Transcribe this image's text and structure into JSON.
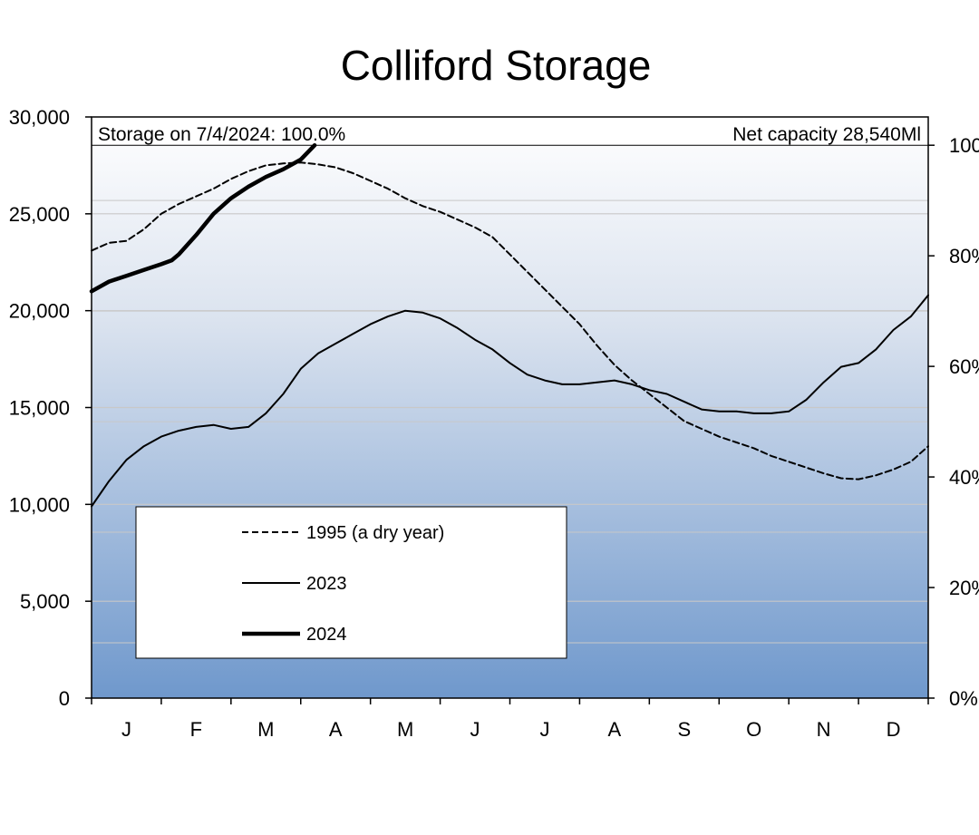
{
  "chart_data": {
    "type": "line",
    "title": "Colliford Storage",
    "storage_note": "Storage on 7/4/2024: 100.0%",
    "capacity_note": "Net capacity 28,540Ml",
    "x_tick_labels": [
      "J",
      "F",
      "M",
      "A",
      "M",
      "J",
      "J",
      "A",
      "S",
      "O",
      "N",
      "D"
    ],
    "xlim": [
      0,
      12
    ],
    "ylim": [
      0,
      30000
    ],
    "y_ticks": [
      0,
      5000,
      10000,
      15000,
      20000,
      25000,
      30000
    ],
    "y_tick_labels": [
      "0",
      "5,000",
      "10,000",
      "15,000",
      "20,000",
      "25,000",
      "30,000"
    ],
    "y2_ticks": [
      0,
      20,
      40,
      60,
      80,
      100
    ],
    "y2_tick_labels": [
      "0%",
      "20%",
      "40%",
      "60%",
      "80%",
      "100%"
    ],
    "y2_unit_max": 28540,
    "minor_gridlines": [
      2854,
      8562,
      14270,
      19978,
      25686
    ],
    "capacity_line": 28540,
    "series": [
      {
        "name": "1995 (a dry year)",
        "style": "dashed",
        "points": [
          [
            0,
            23100
          ],
          [
            0.25,
            23500
          ],
          [
            0.5,
            23600
          ],
          [
            0.75,
            24200
          ],
          [
            1.0,
            25000
          ],
          [
            1.25,
            25500
          ],
          [
            1.5,
            25900
          ],
          [
            1.75,
            26300
          ],
          [
            2.0,
            26800
          ],
          [
            2.25,
            27200
          ],
          [
            2.5,
            27500
          ],
          [
            2.75,
            27600
          ],
          [
            3.0,
            27650
          ],
          [
            3.25,
            27550
          ],
          [
            3.5,
            27400
          ],
          [
            3.75,
            27100
          ],
          [
            4.0,
            26700
          ],
          [
            4.25,
            26300
          ],
          [
            4.5,
            25800
          ],
          [
            4.75,
            25400
          ],
          [
            5.0,
            25100
          ],
          [
            5.25,
            24700
          ],
          [
            5.5,
            24300
          ],
          [
            5.75,
            23800
          ],
          [
            6.0,
            22900
          ],
          [
            6.25,
            22000
          ],
          [
            6.5,
            21100
          ],
          [
            6.75,
            20200
          ],
          [
            7.0,
            19300
          ],
          [
            7.25,
            18200
          ],
          [
            7.5,
            17200
          ],
          [
            7.75,
            16400
          ],
          [
            8.0,
            15700
          ],
          [
            8.25,
            15000
          ],
          [
            8.5,
            14300
          ],
          [
            8.75,
            13900
          ],
          [
            9.0,
            13500
          ],
          [
            9.25,
            13200
          ],
          [
            9.5,
            12900
          ],
          [
            9.75,
            12500
          ],
          [
            10.0,
            12200
          ],
          [
            10.25,
            11900
          ],
          [
            10.5,
            11600
          ],
          [
            10.75,
            11350
          ],
          [
            11.0,
            11300
          ],
          [
            11.25,
            11500
          ],
          [
            11.5,
            11800
          ],
          [
            11.75,
            12200
          ],
          [
            12.0,
            13000
          ]
        ]
      },
      {
        "name": "2023",
        "style": "solid",
        "points": [
          [
            0,
            9900
          ],
          [
            0.25,
            11200
          ],
          [
            0.5,
            12300
          ],
          [
            0.75,
            13000
          ],
          [
            1.0,
            13500
          ],
          [
            1.25,
            13800
          ],
          [
            1.5,
            14000
          ],
          [
            1.75,
            14100
          ],
          [
            2.0,
            13900
          ],
          [
            2.25,
            14000
          ],
          [
            2.5,
            14700
          ],
          [
            2.75,
            15700
          ],
          [
            3.0,
            17000
          ],
          [
            3.25,
            17800
          ],
          [
            3.5,
            18300
          ],
          [
            3.75,
            18800
          ],
          [
            4.0,
            19300
          ],
          [
            4.25,
            19700
          ],
          [
            4.5,
            20000
          ],
          [
            4.75,
            19900
          ],
          [
            5.0,
            19600
          ],
          [
            5.25,
            19100
          ],
          [
            5.5,
            18500
          ],
          [
            5.75,
            18000
          ],
          [
            6.0,
            17300
          ],
          [
            6.25,
            16700
          ],
          [
            6.5,
            16400
          ],
          [
            6.75,
            16200
          ],
          [
            7.0,
            16200
          ],
          [
            7.25,
            16300
          ],
          [
            7.5,
            16400
          ],
          [
            7.75,
            16200
          ],
          [
            8.0,
            15900
          ],
          [
            8.25,
            15700
          ],
          [
            8.5,
            15300
          ],
          [
            8.75,
            14900
          ],
          [
            9.0,
            14800
          ],
          [
            9.25,
            14800
          ],
          [
            9.5,
            14700
          ],
          [
            9.75,
            14700
          ],
          [
            10.0,
            14800
          ],
          [
            10.25,
            15400
          ],
          [
            10.5,
            16300
          ],
          [
            10.75,
            17100
          ],
          [
            11.0,
            17300
          ],
          [
            11.25,
            18000
          ],
          [
            11.5,
            19000
          ],
          [
            11.75,
            19700
          ],
          [
            12.0,
            20800
          ]
        ]
      },
      {
        "name": "2024",
        "style": "thick",
        "points": [
          [
            0,
            21000
          ],
          [
            0.25,
            21500
          ],
          [
            0.5,
            21800
          ],
          [
            0.75,
            22100
          ],
          [
            1.0,
            22400
          ],
          [
            1.15,
            22600
          ],
          [
            1.25,
            22900
          ],
          [
            1.5,
            23900
          ],
          [
            1.75,
            25000
          ],
          [
            2.0,
            25800
          ],
          [
            2.25,
            26400
          ],
          [
            2.5,
            26900
          ],
          [
            2.75,
            27300
          ],
          [
            3.0,
            27800
          ],
          [
            3.2,
            28540
          ]
        ]
      }
    ],
    "legend_position": "lower-left",
    "colors": {
      "background_top": "#ffffff",
      "background_bottom": "#6f98cc",
      "line": "#000000",
      "grid": "#c8c8c8"
    }
  }
}
